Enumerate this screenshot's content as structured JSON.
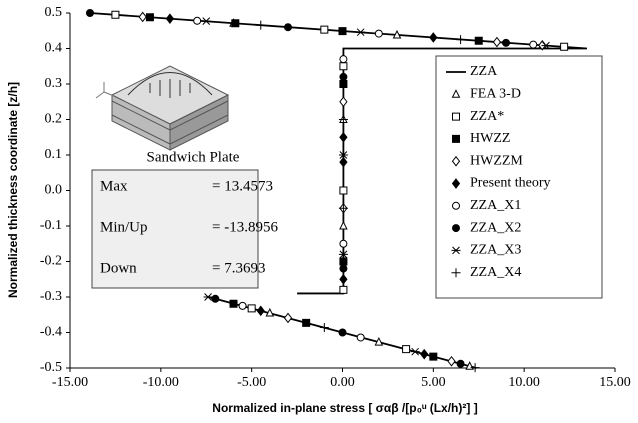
{
  "chart_data": {
    "type": "scatter",
    "xlabel": "Normalized in-plane stress  [ σαβ /[p₀ᵘ (Lx/h)²] ]",
    "ylabel": "Normalized thickness coordinate [z/h]",
    "xlim": [
      -15,
      15
    ],
    "xticks": [
      {
        "value": -15,
        "label": "-15.00"
      },
      {
        "value": -10,
        "label": "-10.00"
      },
      {
        "value": -5,
        "label": "-5.00"
      },
      {
        "value": 0,
        "label": "0.00"
      },
      {
        "value": 5,
        "label": "5.00"
      },
      {
        "value": 10,
        "label": "10.00"
      },
      {
        "value": 15,
        "label": "15.00"
      }
    ],
    "ylim": [
      -0.5,
      0.5
    ],
    "yticks": [
      0.5,
      0.4,
      0.3,
      0.2,
      0.1,
      {
        "value": 0,
        "label": "0.0"
      },
      -0.1,
      -0.2,
      -0.3,
      -0.4,
      -0.5
    ],
    "inset_label": "Sandwich Plate",
    "annotations": [
      [
        "Max",
        "= 13.4573"
      ],
      [
        "Min/Up",
        "= -13.8956"
      ],
      [
        "Down",
        "= 7.3693"
      ]
    ],
    "series": [
      {
        "name": "ZZA",
        "color": "#000000",
        "line": true,
        "marker": "none",
        "x": [
          -13.8956,
          13.4573,
          0.05,
          0.05,
          -2.5,
          null,
          -7.3693,
          7.3693
        ],
        "values": [
          0.5,
          0.4,
          0.4,
          -0.29,
          -0.29,
          null,
          -0.3,
          -0.5
        ]
      },
      {
        "name": "FEA 3-D",
        "color": "#000000",
        "marker": "triangle",
        "x": [
          -6,
          3,
          11,
          0.05,
          0.05,
          -4,
          2,
          7
        ],
        "values": [
          0.471,
          0.438,
          0.409,
          0.2,
          -0.1,
          -0.345,
          -0.427,
          -0.495
        ]
      },
      {
        "name": "ZZA*",
        "color": "#000000",
        "marker": "square",
        "x": [
          -12.5,
          -1,
          12.2,
          0.05,
          0.05,
          0.05,
          -5,
          3.5
        ],
        "values": [
          0.495,
          0.453,
          0.405,
          0.35,
          0,
          -0.28,
          -0.332,
          -0.447
        ]
      },
      {
        "name": "HWZZ",
        "color": "#000000",
        "marker": "square-filled",
        "x": [
          -10.6,
          -5.9,
          0,
          7.5,
          0.05,
          0.05,
          -6,
          -2,
          5
        ],
        "values": [
          0.488,
          0.471,
          0.449,
          0.422,
          0.3,
          -0.2,
          -0.319,
          -0.373,
          -0.468
        ]
      },
      {
        "name": "HWZZM",
        "color": "#000000",
        "marker": "diamond",
        "x": [
          -11,
          8.5,
          11,
          0.05,
          0.05,
          -3,
          6
        ],
        "values": [
          0.489,
          0.418,
          0.409,
          0.25,
          -0.05,
          -0.359,
          -0.481
        ]
      },
      {
        "name": "Present theory",
        "color": "#000000",
        "marker": "diamond-filled",
        "x": [
          -9.5,
          5,
          0.05,
          0.05,
          0.05,
          -4.5,
          4.5
        ],
        "values": [
          0.484,
          0.431,
          0.15,
          0.08,
          -0.25,
          -0.339,
          -0.461
        ]
      },
      {
        "name": "ZZA_X1",
        "color": "#000000",
        "marker": "circle",
        "x": [
          -8,
          2,
          10.5,
          0.05,
          0.05,
          -5.5,
          1
        ],
        "values": [
          0.478,
          0.442,
          0.411,
          0.37,
          -0.15,
          -0.325,
          -0.414
        ]
      },
      {
        "name": "ZZA_X2",
        "color": "#000000",
        "marker": "circle-filled",
        "x": [
          -13.9,
          -3,
          9,
          0.05,
          0.05,
          -7,
          0,
          6.5
        ],
        "values": [
          0.5,
          0.46,
          0.416,
          0.32,
          -0.22,
          -0.305,
          -0.4,
          -0.488
        ]
      },
      {
        "name": "ZZA_X3",
        "color": "#000000",
        "marker": "asterisk",
        "x": [
          -7.5,
          1,
          11.2,
          0.05,
          0.05,
          -7.4,
          4
        ],
        "values": [
          0.477,
          0.446,
          0.408,
          0.1,
          -0.18,
          -0.3,
          -0.454
        ]
      },
      {
        "name": "ZZA_X4",
        "color": "#000000",
        "marker": "plus",
        "x": [
          -4.5,
          6.5,
          0.05,
          0.05,
          -1,
          7.3
        ],
        "values": [
          0.466,
          0.425,
          0.2,
          -0.05,
          -0.386,
          -0.499
        ]
      }
    ]
  }
}
